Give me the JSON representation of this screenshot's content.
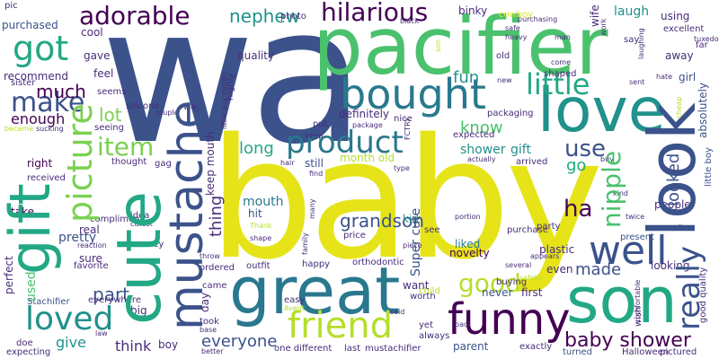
{
  "colors": {
    "background": "#ffffff",
    "yellow": "#e6e419",
    "lime": "#b5de2b",
    "lightgreen": "#7ad151",
    "green": "#4ac16d",
    "teal": "#22a884",
    "tealblue": "#21918c",
    "blue": "#2a788e",
    "steel": "#3b528b",
    "indigo": "#472c7a",
    "purple": "#440154"
  },
  "words": {
    "wa": "wa",
    "baby": "baby",
    "pacifier": "pacifier",
    "great": "great",
    "love": "love",
    "look": "look",
    "son": "son",
    "gift": "gift",
    "cute": "cute",
    "mustache": "mustache",
    "bought": "bought",
    "funny": "funny",
    "friend": "friend",
    "picture": "picture",
    "product": "product",
    "really": "really",
    "adorable": "adorable",
    "hilarious": "hilarious",
    "little": "little",
    "got": "got",
    "well": "well",
    "loved": "loved",
    "make": "make",
    "item": "item",
    "nephew": "nephew",
    "much": "much",
    "use": "use",
    "ha": "ha",
    "good": "good",
    "nipple": "nipple",
    "baby_shower": "baby shower",
    "grandson": "grandson",
    "lot": "lot",
    "made": "made",
    "everyone": "everyone",
    "know": "know",
    "fun": "fun",
    "long": "long",
    "mouth": "mouth",
    "thing": "thing",
    "part": "part",
    "give": "give",
    "think": "think",
    "go": "go",
    "looked": "looked",
    "enough": "enough",
    "laugh": "laugh",
    "used": "used",
    "perfect": "perfect",
    "recommend": "recommend",
    "quality": "quality",
    "definitely": "definitely",
    "shower": "shower",
    "gift_small": "gift",
    "pretty": "pretty",
    "Super_cute": "Super cute",
    "liked": "liked",
    "kid": "kid",
    "month_old": "month old",
    "still": "still",
    "right": "right",
    "take": "take",
    "real": "real",
    "sure": "sure",
    "hit": "hit",
    "keep_mouth": "keep mouth",
    "photo": "photo",
    "boy": "boy",
    "day": "day",
    "parent": "parent",
    "never": "never",
    "even": "even",
    "first": "first",
    "purchase": "purchase",
    "buying": "buying",
    "one_different": "one different",
    "last": "last",
    "mustachifier": "mustachifier",
    "exactly": "exactly",
    "using": "using",
    "excellent": "excellent",
    "binky": "binky",
    "cowboy": "cowboy",
    "pic": "pic",
    "wife": "wife",
    "say": "say",
    "far": "far",
    "tuxedo": "tuxedo",
    "away": "away",
    "girl": "girl",
    "hate": "hate",
    "absolutely": "absolutely",
    "people": "people",
    "little_boy": "little boy",
    "good_quality": "good quality",
    "cheap": "cheap",
    "wish": "wish",
    "comfortable": "comfortable",
    "turned": "turned",
    "pictured": "pictured",
    "Halloween": "Halloween",
    "looking": "looking",
    "small": "small",
    "present": "present",
    "twice": "twice",
    "kind": "kind",
    "cool": "cool",
    "purchased": "purchased",
    "gave": "gave",
    "feel": "feel",
    "seems": "seems",
    "sister": "sister",
    "absolutely2": "absolutely",
    "silicone": "silicone",
    "seeing": "seeing",
    "sucking": "sucking",
    "became": "became",
    "received": "received",
    "reaction": "reaction",
    "favorite": "favorite",
    "everywhere": "everywhere",
    "Stachifier": "Stachifier",
    "big": "big",
    "doe": "doe",
    "expecting": "expecting",
    "law": "law",
    "way": "way",
    "couple": "couple",
    "thought": "thought",
    "gag": "gag",
    "compliment": "compliment",
    "idea": "idea",
    "cutest": "cutest",
    "money": "money",
    "Thank": "Thank",
    "shape": "shape",
    "throw": "throw",
    "ordered": "ordered",
    "came": "came",
    "took": "took",
    "base": "base",
    "better": "better",
    "outfit": "outfit",
    "happy": "happy",
    "easy": "easy",
    "Avent": "Avent",
    "family": "family",
    "many": "many",
    "price": "price",
    "orthodontic": "orthodontic",
    "worth": "worth",
    "said": "said",
    "yet": "yet",
    "always": "always",
    "paci": "paci",
    "child": "child",
    "want": "want",
    "novelty": "novelty",
    "piece": "piece",
    "several": "several",
    "safety": "safety",
    "appears": "appears",
    "plastic": "plastic",
    "party": "party",
    "portion": "portion",
    "see": "see",
    "hair": "hair",
    "find": "find",
    "type": "type",
    "actually": "actually",
    "arrived": "arrived",
    "expected": "expected",
    "buy": "buy",
    "packaging": "packaging",
    "nice": "nice",
    "package": "package",
    "put": "put",
    "keep": "keep",
    "FCTRY": "FCTRY",
    "old": "old",
    "new": "new",
    "shaped": "shaped",
    "come": "come",
    "man": "man",
    "heavy": "heavy",
    "safe": "safe",
    "purchasing": "purchasing",
    "black": "black",
    "son_small": "son",
    "sent": "sent",
    "laughing": "laughing",
    "work": "work",
    "highly": "highly",
    "little_guy_month": "little guy month"
  }
}
